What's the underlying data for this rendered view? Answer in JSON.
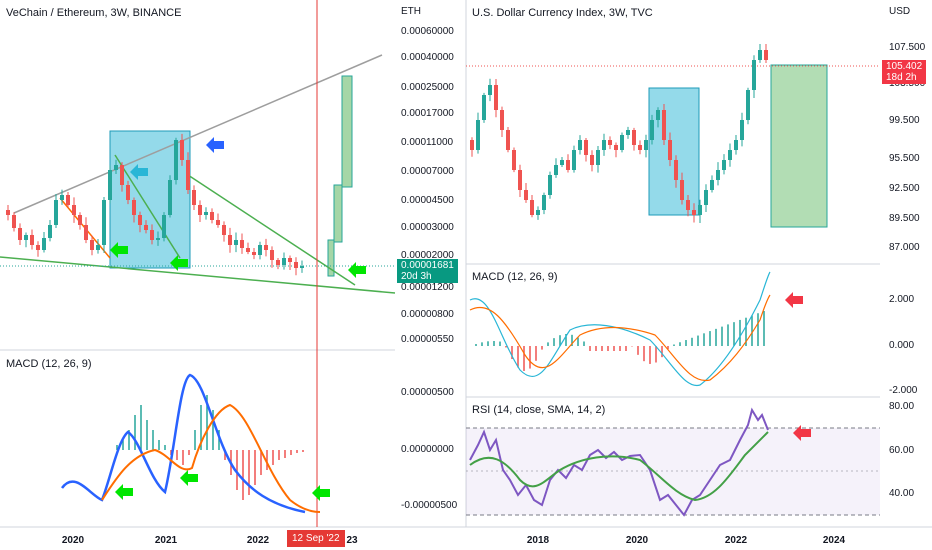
{
  "left_chart": {
    "title": "VeChain / Ethereum, 3W, BINANCE",
    "axis_unit": "ETH",
    "price_ticks": [
      "0.00060000",
      "0.00040000",
      "0.00025000",
      "0.00017000",
      "0.00011000",
      "0.00007000",
      "0.00004500",
      "0.00003000",
      "0.00002000",
      "0.00001200",
      "0.00000800",
      "0.00000550"
    ],
    "last_price": "0.00001681",
    "countdown": "20d 3h",
    "macd_title": "MACD (12, 26, 9)",
    "macd_ticks": [
      "0.00000500",
      "0.00000000",
      "-0.00000500"
    ],
    "x_ticks": [
      "2020",
      "2021",
      "2022",
      "23"
    ],
    "cursor_date": "12 Sep '22",
    "colors": {
      "up": "#26a69a",
      "down": "#ef5350",
      "macd_line": "#2962ff",
      "signal_line": "#ff6d00",
      "box": "#29b6d6",
      "arrow_green": "#00e600",
      "arrow_blue": "#2962ff",
      "cursor": "#e53935"
    }
  },
  "right_chart": {
    "title": "U.S. Dollar Currency Index, 3W, TVC",
    "axis_unit": "USD",
    "price_ticks": [
      "107.500",
      "103.500",
      "99.500",
      "95.500",
      "92.500",
      "89.500",
      "87.000"
    ],
    "last_price": "105.402",
    "countdown": "18d 2h",
    "macd_title": "MACD (12, 26, 9)",
    "macd_ticks": [
      "2.000",
      "0.000",
      "-2.000"
    ],
    "rsi_title": "RSI (14, close, SMA, 14, 2)",
    "rsi_ticks": [
      "80.00",
      "60.00",
      "40.00"
    ],
    "x_ticks": [
      "2018",
      "2020",
      "2022",
      "2024"
    ],
    "colors": {
      "up": "#26a69a",
      "down": "#ef5350",
      "rsi": "#7e57c2",
      "rsi_ma": "#43a047",
      "box_blue": "#29b6d6",
      "box_green": "#66bb6a",
      "arrow_red": "#f23645"
    }
  }
}
